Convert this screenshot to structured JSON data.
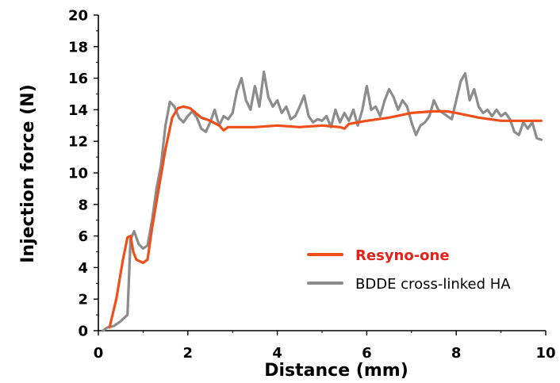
{
  "chart_data": {
    "type": "line",
    "xlabel": "Distance (mm)",
    "ylabel": "Injection force (N)",
    "xlim": [
      0,
      10
    ],
    "ylim": [
      0,
      20
    ],
    "xticks": [
      "0",
      "2",
      "4",
      "6",
      "8",
      "10"
    ],
    "yticks": [
      "0",
      "2",
      "4",
      "6",
      "8",
      "10",
      "12",
      "14",
      "16",
      "18",
      "20"
    ],
    "grid": false,
    "legend_position": "bottom-right",
    "series": [
      {
        "name": "Resyno-one",
        "color": "#f04e1a",
        "legend_color": "#e8201a",
        "x": [
          0.25,
          0.4,
          0.55,
          0.65,
          0.72,
          0.78,
          0.85,
          1.0,
          1.1,
          1.2,
          1.35,
          1.5,
          1.65,
          1.78,
          1.9,
          2.05,
          2.3,
          2.5,
          2.7,
          2.8,
          2.9,
          3.2,
          3.5,
          4.0,
          4.5,
          5.0,
          5.4,
          5.5,
          5.6,
          6.0,
          6.5,
          7.0,
          7.5,
          7.8,
          8.0,
          8.5,
          9.0,
          9.5,
          9.9
        ],
        "y": [
          0.2,
          2.0,
          4.5,
          5.9,
          6.0,
          5.0,
          4.5,
          4.3,
          4.5,
          6.5,
          9.0,
          11.5,
          13.5,
          14.1,
          14.2,
          14.1,
          13.5,
          13.3,
          13.0,
          12.7,
          12.9,
          12.9,
          12.9,
          13.0,
          12.9,
          13.0,
          12.9,
          12.8,
          13.1,
          13.3,
          13.5,
          13.8,
          13.9,
          13.9,
          13.8,
          13.5,
          13.3,
          13.3,
          13.3
        ]
      },
      {
        "name": "BDDE cross-linked HA",
        "color": "#8c8c8c",
        "legend_color": "#8c8c8c",
        "x": [
          0.1,
          0.2,
          0.35,
          0.5,
          0.65,
          0.72,
          0.8,
          0.9,
          1.0,
          1.1,
          1.2,
          1.3,
          1.4,
          1.5,
          1.6,
          1.7,
          1.8,
          1.9,
          2.0,
          2.1,
          2.2,
          2.3,
          2.4,
          2.5,
          2.6,
          2.7,
          2.8,
          2.9,
          3.0,
          3.1,
          3.2,
          3.3,
          3.4,
          3.5,
          3.6,
          3.7,
          3.8,
          3.9,
          4.0,
          4.1,
          4.2,
          4.3,
          4.4,
          4.5,
          4.6,
          4.7,
          4.8,
          4.9,
          5.0,
          5.1,
          5.2,
          5.3,
          5.4,
          5.5,
          5.6,
          5.7,
          5.8,
          5.9,
          6.0,
          6.1,
          6.2,
          6.3,
          6.4,
          6.5,
          6.6,
          6.7,
          6.8,
          6.9,
          7.0,
          7.1,
          7.2,
          7.3,
          7.4,
          7.5,
          7.6,
          7.7,
          7.8,
          7.9,
          8.0,
          8.1,
          8.2,
          8.3,
          8.4,
          8.5,
          8.6,
          8.7,
          8.8,
          8.9,
          9.0,
          9.1,
          9.2,
          9.3,
          9.4,
          9.5,
          9.6,
          9.7,
          9.8,
          9.9
        ],
        "y": [
          0.0,
          0.2,
          0.3,
          0.6,
          1.0,
          5.8,
          6.3,
          5.5,
          5.2,
          5.4,
          7.0,
          9.0,
          10.5,
          13.0,
          14.5,
          14.2,
          13.5,
          13.2,
          13.6,
          13.9,
          13.5,
          12.8,
          12.6,
          13.2,
          14.0,
          13.0,
          13.6,
          13.4,
          13.8,
          15.2,
          16.0,
          14.6,
          14.0,
          15.5,
          14.2,
          16.4,
          14.8,
          14.2,
          14.6,
          13.8,
          14.2,
          13.4,
          13.6,
          14.2,
          14.9,
          13.6,
          13.2,
          13.4,
          13.3,
          13.6,
          12.9,
          14.0,
          13.2,
          13.8,
          13.3,
          14.0,
          13.0,
          14.0,
          15.5,
          14.0,
          14.2,
          13.6,
          14.6,
          15.3,
          14.8,
          14.0,
          14.6,
          14.2,
          13.2,
          12.4,
          13.0,
          13.2,
          13.6,
          14.6,
          14.0,
          13.8,
          13.6,
          13.4,
          14.6,
          15.8,
          16.3,
          14.6,
          15.3,
          14.2,
          13.8,
          14.0,
          13.6,
          14.0,
          13.6,
          13.8,
          13.4,
          12.6,
          12.4,
          13.2,
          12.8,
          13.2,
          12.2,
          12.1
        ]
      }
    ]
  }
}
